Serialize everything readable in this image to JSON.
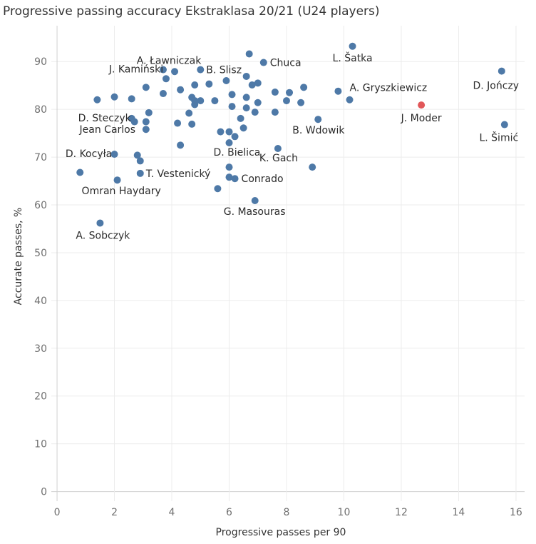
{
  "chart_data": {
    "type": "scatter",
    "title": "Progressive passing accuracy Ekstraklasa 20/21 (U24 players)",
    "xlabel": "Progressive passes per 90",
    "ylabel": "Accurate passes, %",
    "xlim": [
      -0.2,
      16.3
    ],
    "ylim": [
      -2,
      97.5
    ],
    "xticks": [
      0,
      2,
      4,
      6,
      8,
      10,
      12,
      14,
      16
    ],
    "yticks": [
      0,
      10,
      20,
      30,
      40,
      50,
      60,
      70,
      80,
      90
    ],
    "grid": true,
    "colors": {
      "default": "#4e79a7",
      "highlight": "#e15759"
    },
    "points": [
      {
        "x": 0.8,
        "y": 66.8
      },
      {
        "x": 1.5,
        "y": 56.2,
        "label": "A. Sobczyk"
      },
      {
        "x": 1.4,
        "y": 82.0
      },
      {
        "x": 2.0,
        "y": 82.6
      },
      {
        "x": 2.0,
        "y": 70.6,
        "label": "D. Kocyła"
      },
      {
        "x": 2.1,
        "y": 65.2,
        "label": "Omran Haydary"
      },
      {
        "x": 2.6,
        "y": 78.1,
        "label": "D. Steczyk"
      },
      {
        "x": 2.6,
        "y": 82.2
      },
      {
        "x": 2.7,
        "y": 77.4
      },
      {
        "x": 2.8,
        "y": 70.4
      },
      {
        "x": 2.9,
        "y": 69.2
      },
      {
        "x": 2.9,
        "y": 66.6,
        "label": "T. Vestenický"
      },
      {
        "x": 3.1,
        "y": 77.4
      },
      {
        "x": 3.1,
        "y": 75.8,
        "label": "Jean Carlos"
      },
      {
        "x": 3.1,
        "y": 84.6
      },
      {
        "x": 3.2,
        "y": 79.3
      },
      {
        "x": 3.7,
        "y": 88.3
      },
      {
        "x": 3.7,
        "y": 83.3
      },
      {
        "x": 3.8,
        "y": 86.4,
        "label": "J. Kamiński"
      },
      {
        "x": 4.1,
        "y": 87.9,
        "label": "A. Ławniczak"
      },
      {
        "x": 4.2,
        "y": 77.1
      },
      {
        "x": 4.3,
        "y": 84.1
      },
      {
        "x": 4.3,
        "y": 72.5
      },
      {
        "x": 4.6,
        "y": 79.2
      },
      {
        "x": 4.7,
        "y": 76.9
      },
      {
        "x": 4.7,
        "y": 82.5
      },
      {
        "x": 4.8,
        "y": 85.1
      },
      {
        "x": 4.8,
        "y": 81.8
      },
      {
        "x": 4.8,
        "y": 81.0
      },
      {
        "x": 5.0,
        "y": 81.8
      },
      {
        "x": 5.0,
        "y": 88.3,
        "label": "B. Slisz"
      },
      {
        "x": 5.3,
        "y": 85.3
      },
      {
        "x": 5.5,
        "y": 81.8
      },
      {
        "x": 5.6,
        "y": 63.4
      },
      {
        "x": 5.7,
        "y": 75.3
      },
      {
        "x": 5.9,
        "y": 86.0
      },
      {
        "x": 6.0,
        "y": 75.3
      },
      {
        "x": 6.0,
        "y": 73.0,
        "label": "D. Bielica"
      },
      {
        "x": 6.0,
        "y": 67.9
      },
      {
        "x": 6.0,
        "y": 65.8
      },
      {
        "x": 6.1,
        "y": 83.1
      },
      {
        "x": 6.1,
        "y": 80.6
      },
      {
        "x": 6.2,
        "y": 74.3
      },
      {
        "x": 6.2,
        "y": 65.5,
        "label": "Conrado"
      },
      {
        "x": 6.4,
        "y": 78.1
      },
      {
        "x": 6.5,
        "y": 76.1
      },
      {
        "x": 6.6,
        "y": 82.5
      },
      {
        "x": 6.6,
        "y": 80.3
      },
      {
        "x": 6.6,
        "y": 86.9
      },
      {
        "x": 6.7,
        "y": 91.6
      },
      {
        "x": 6.8,
        "y": 85.1
      },
      {
        "x": 6.9,
        "y": 79.4
      },
      {
        "x": 6.9,
        "y": 60.9,
        "label": "G. Masouras"
      },
      {
        "x": 7.0,
        "y": 81.4
      },
      {
        "x": 7.0,
        "y": 85.5
      },
      {
        "x": 7.2,
        "y": 89.8,
        "label": "Chuca"
      },
      {
        "x": 7.6,
        "y": 83.6
      },
      {
        "x": 7.6,
        "y": 79.4
      },
      {
        "x": 7.7,
        "y": 71.8,
        "label": "K. Gach"
      },
      {
        "x": 8.0,
        "y": 81.8
      },
      {
        "x": 8.1,
        "y": 83.5
      },
      {
        "x": 8.5,
        "y": 81.4
      },
      {
        "x": 8.6,
        "y": 84.6
      },
      {
        "x": 8.9,
        "y": 67.9
      },
      {
        "x": 9.1,
        "y": 77.9,
        "label": "B. Wdowik"
      },
      {
        "x": 9.8,
        "y": 83.8
      },
      {
        "x": 10.2,
        "y": 82.0,
        "label": "A. Gryszkiewicz"
      },
      {
        "x": 10.3,
        "y": 93.2,
        "label": "L. Šatka"
      },
      {
        "x": 12.7,
        "y": 80.9,
        "label": "J. Moder",
        "highlight": true
      },
      {
        "x": 15.5,
        "y": 88.0,
        "label": "D. Jończy"
      },
      {
        "x": 15.6,
        "y": 76.8,
        "label": "L. Šimić"
      }
    ]
  }
}
